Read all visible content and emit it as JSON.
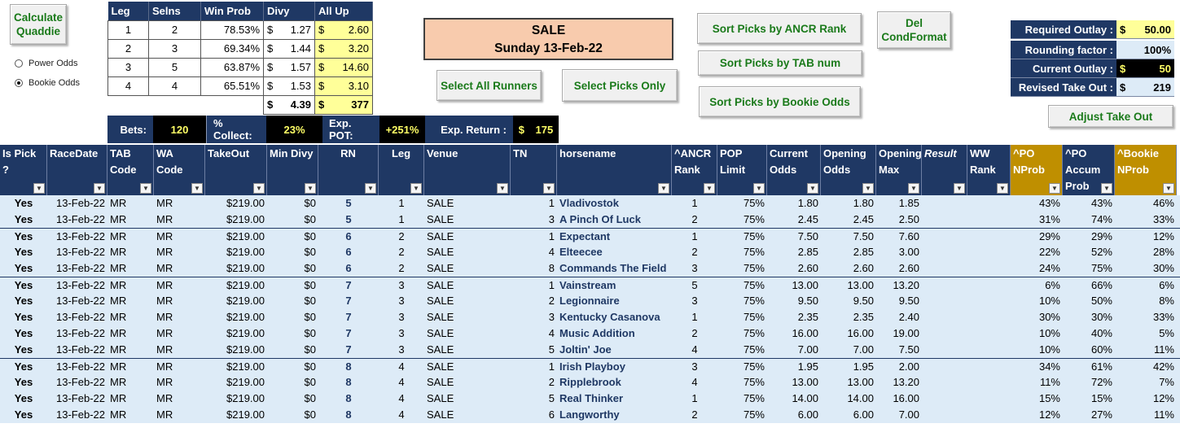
{
  "buttons": {
    "calculate": "Calculate Quaddie",
    "select_all": "Select All Runners",
    "select_picks": "Select Picks Only",
    "sort_ancr": "Sort Picks by ANCR Rank",
    "sort_tab": "Sort Picks by TAB num",
    "sort_bookie": "Sort Picks by Bookie Odds",
    "del_condformat": "Del CondFormat",
    "adjust_takeout": "Adjust Take Out"
  },
  "odds_mode": {
    "options": [
      "Power Odds",
      "Bookie Odds"
    ],
    "selected": "Bookie Odds"
  },
  "legs_table": {
    "headers": [
      "Leg",
      "Selns",
      "Win Prob",
      "Divy",
      "All Up"
    ],
    "currency": "$",
    "rows": [
      {
        "leg": "1",
        "selns": "2",
        "win_prob": "78.53%",
        "divy": "1.27",
        "all_up": "2.60"
      },
      {
        "leg": "2",
        "selns": "3",
        "win_prob": "69.34%",
        "divy": "1.44",
        "all_up": "3.20"
      },
      {
        "leg": "3",
        "selns": "5",
        "win_prob": "63.87%",
        "divy": "1.57",
        "all_up": "14.60"
      },
      {
        "leg": "4",
        "selns": "4",
        "win_prob": "65.51%",
        "divy": "1.53",
        "all_up": "3.10"
      }
    ],
    "total_divy": "4.39",
    "total_all_up": "377"
  },
  "bets_bar": {
    "bets_label": "Bets:",
    "bets_value": "120",
    "collect_label": "% Collect:",
    "collect_value": "23%",
    "pot_label": "Exp. POT:",
    "pot_value": "+251%",
    "return_label": "Exp. Return :",
    "return_currency": "$",
    "return_value": "175"
  },
  "sale_box": {
    "venue": "SALE",
    "date": "Sunday 13-Feb-22"
  },
  "right_panel": {
    "currency": "$",
    "required_outlay_label": "Required Outlay :",
    "required_outlay": "50.00",
    "rounding_label": "Rounding factor :",
    "rounding": "100%",
    "current_outlay_label": "Current Outlay :",
    "current_outlay": "50",
    "revised_takeout_label": "Revised Take Out :",
    "revised_takeout": "219"
  },
  "grid": {
    "headers": [
      "Is Pick ?",
      "RaceDate",
      "TAB Code",
      "WA Code",
      "TakeOut",
      "Min Divy",
      "RN",
      "Leg",
      "Venue",
      "TN",
      "horsename",
      "^ANCR Rank",
      "POP Limit",
      "Current Odds",
      "Opening Odds",
      "Opening Max",
      "Result",
      "WW Rank",
      "^PO NProb",
      "^PO Accum Prob",
      "^Bookie NProb"
    ],
    "rows": [
      [
        "Yes",
        "13-Feb-22",
        "MR",
        "MR",
        "$219.00",
        "$0",
        "5",
        "1",
        "SALE",
        "1",
        "Vladivostok",
        "1",
        "75%",
        "1.80",
        "1.80",
        "1.85",
        "",
        "",
        "43%",
        "43%",
        "46%"
      ],
      [
        "Yes",
        "13-Feb-22",
        "MR",
        "MR",
        "$219.00",
        "$0",
        "5",
        "1",
        "SALE",
        "3",
        "A Pinch Of Luck",
        "2",
        "75%",
        "2.45",
        "2.45",
        "2.50",
        "",
        "",
        "31%",
        "74%",
        "33%"
      ],
      [
        "Yes",
        "13-Feb-22",
        "MR",
        "MR",
        "$219.00",
        "$0",
        "6",
        "2",
        "SALE",
        "1",
        "Expectant",
        "1",
        "75%",
        "7.50",
        "7.50",
        "7.60",
        "",
        "",
        "29%",
        "29%",
        "12%"
      ],
      [
        "Yes",
        "13-Feb-22",
        "MR",
        "MR",
        "$219.00",
        "$0",
        "6",
        "2",
        "SALE",
        "4",
        "Elteecee",
        "2",
        "75%",
        "2.85",
        "2.85",
        "3.00",
        "",
        "",
        "22%",
        "52%",
        "28%"
      ],
      [
        "Yes",
        "13-Feb-22",
        "MR",
        "MR",
        "$219.00",
        "$0",
        "6",
        "2",
        "SALE",
        "8",
        "Commands The Field",
        "3",
        "75%",
        "2.60",
        "2.60",
        "2.60",
        "",
        "",
        "24%",
        "75%",
        "30%"
      ],
      [
        "Yes",
        "13-Feb-22",
        "MR",
        "MR",
        "$219.00",
        "$0",
        "7",
        "3",
        "SALE",
        "1",
        "Vainstream",
        "5",
        "75%",
        "13.00",
        "13.00",
        "13.20",
        "",
        "",
        "6%",
        "66%",
        "6%"
      ],
      [
        "Yes",
        "13-Feb-22",
        "MR",
        "MR",
        "$219.00",
        "$0",
        "7",
        "3",
        "SALE",
        "2",
        "Legionnaire",
        "3",
        "75%",
        "9.50",
        "9.50",
        "9.50",
        "",
        "",
        "10%",
        "50%",
        "8%"
      ],
      [
        "Yes",
        "13-Feb-22",
        "MR",
        "MR",
        "$219.00",
        "$0",
        "7",
        "3",
        "SALE",
        "3",
        "Kentucky Casanova",
        "1",
        "75%",
        "2.35",
        "2.35",
        "2.40",
        "",
        "",
        "30%",
        "30%",
        "33%"
      ],
      [
        "Yes",
        "13-Feb-22",
        "MR",
        "MR",
        "$219.00",
        "$0",
        "7",
        "3",
        "SALE",
        "4",
        "Music Addition",
        "2",
        "75%",
        "16.00",
        "16.00",
        "19.00",
        "",
        "",
        "10%",
        "40%",
        "5%"
      ],
      [
        "Yes",
        "13-Feb-22",
        "MR",
        "MR",
        "$219.00",
        "$0",
        "7",
        "3",
        "SALE",
        "5",
        "Joltin' Joe",
        "4",
        "75%",
        "7.00",
        "7.00",
        "7.50",
        "",
        "",
        "10%",
        "60%",
        "11%"
      ],
      [
        "Yes",
        "13-Feb-22",
        "MR",
        "MR",
        "$219.00",
        "$0",
        "8",
        "4",
        "SALE",
        "1",
        "Irish Playboy",
        "3",
        "75%",
        "1.95",
        "1.95",
        "2.00",
        "",
        "",
        "34%",
        "61%",
        "42%"
      ],
      [
        "Yes",
        "13-Feb-22",
        "MR",
        "MR",
        "$219.00",
        "$0",
        "8",
        "4",
        "SALE",
        "2",
        "Ripplebrook",
        "4",
        "75%",
        "13.00",
        "13.00",
        "13.20",
        "",
        "",
        "11%",
        "72%",
        "7%"
      ],
      [
        "Yes",
        "13-Feb-22",
        "MR",
        "MR",
        "$219.00",
        "$0",
        "8",
        "4",
        "SALE",
        "5",
        "Real Thinker",
        "1",
        "75%",
        "14.00",
        "14.00",
        "16.00",
        "",
        "",
        "15%",
        "15%",
        "12%"
      ],
      [
        "Yes",
        "13-Feb-22",
        "MR",
        "MR",
        "$219.00",
        "$0",
        "8",
        "4",
        "SALE",
        "6",
        "Langworthy",
        "2",
        "75%",
        "6.00",
        "6.00",
        "7.00",
        "",
        "",
        "12%",
        "27%",
        "11%"
      ]
    ]
  },
  "colors": {
    "navy": "#1f3864",
    "gold": "#bf8f00",
    "row_fill": "#ddebf7",
    "button_text": "#1a7a1a",
    "highlight_yellow": "#ffff99",
    "sale_fill": "#f8cbad"
  }
}
